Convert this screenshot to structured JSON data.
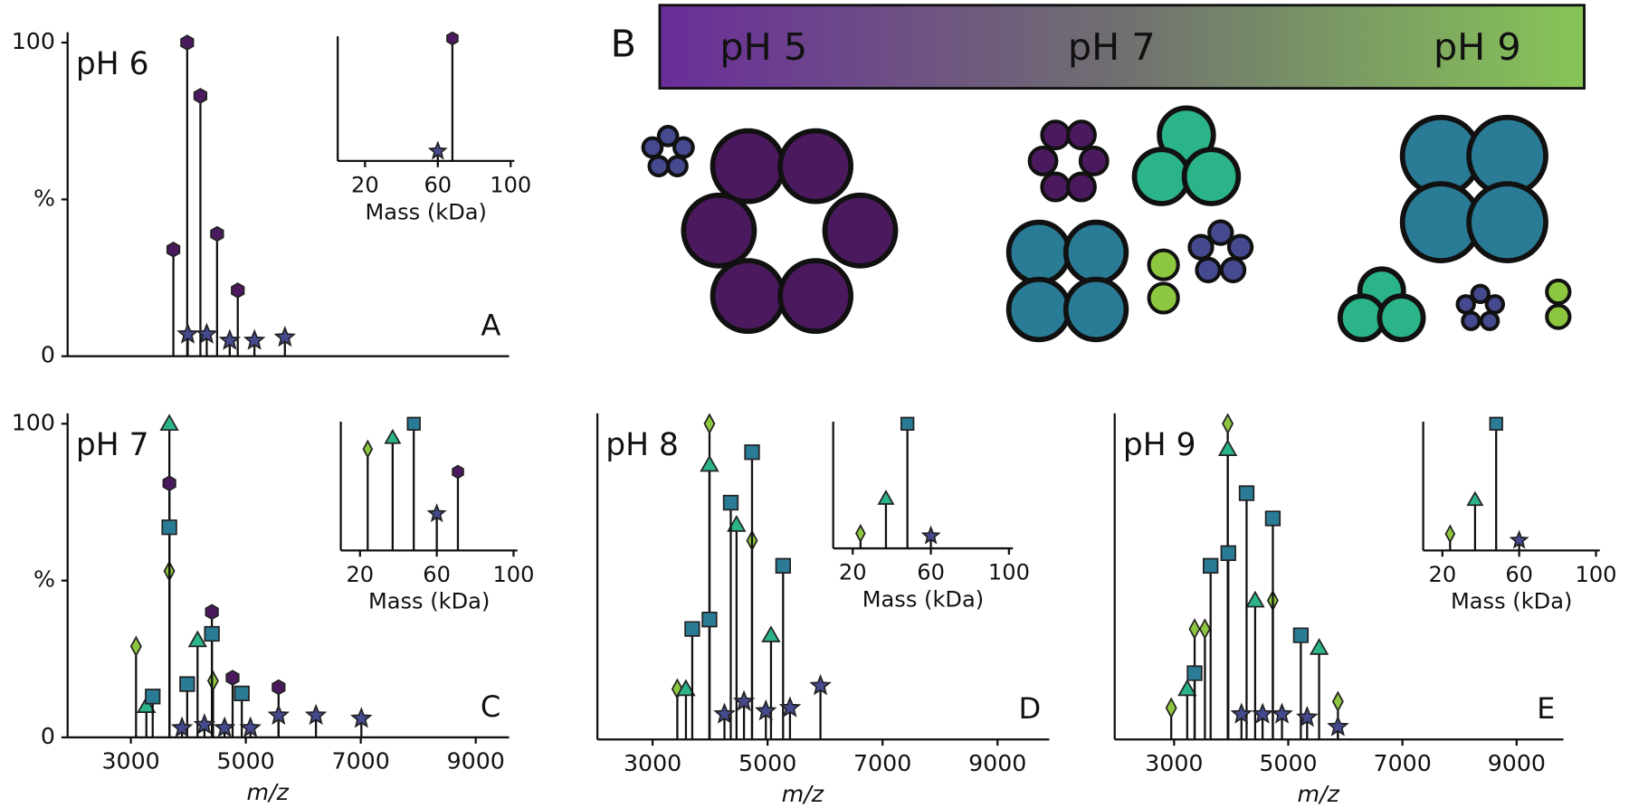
{
  "chart_data": [
    {
      "type": "stem",
      "title": "pH 6",
      "panel": "A",
      "xlim": [
        1900,
        9580
      ],
      "ylim": [
        0,
        100
      ],
      "yticks": [
        0,
        {
          "value": 50,
          "label": "%"
        },
        100
      ],
      "series": [
        {
          "marker": "hexagon",
          "color": "#4b1a5e",
          "x": [
            3740,
            3980,
            4210,
            4500,
            4860
          ],
          "values": [
            34,
            100,
            83,
            39,
            21
          ]
        },
        {
          "marker": "star",
          "color": "#454a8f",
          "x": [
            3990,
            4320,
            4720,
            5150,
            5680
          ],
          "values": [
            7,
            7,
            5,
            5,
            6
          ]
        }
      ],
      "inset": {
        "type": "stem",
        "xlabel": "Mass (kDa)",
        "xlim": [
          5,
          102
        ],
        "ylim": [
          0,
          100
        ],
        "xticks": [
          20,
          60,
          100
        ],
        "series": [
          {
            "marker": "hexagon",
            "color": "#4b1a5e",
            "x": [
              68
            ],
            "values": [
              100
            ]
          },
          {
            "marker": "star",
            "color": "#454a8f",
            "x": [
              60
            ],
            "values": [
              8
            ]
          }
        ]
      }
    },
    {
      "type": "stem",
      "title": "pH 7",
      "panel": "C",
      "xlabel": "m/z",
      "xlim": [
        1900,
        9580
      ],
      "ylim": [
        0,
        100
      ],
      "yticks": [
        0,
        {
          "value": 50,
          "label": "%"
        },
        100
      ],
      "xticks": [
        3000,
        5000,
        7000,
        9000
      ],
      "series": [
        {
          "marker": "diamond",
          "color": "#8dc63f",
          "x": [
            3090,
            3670,
            4430
          ],
          "values": [
            29,
            53,
            18
          ]
        },
        {
          "marker": "triangle",
          "color": "#2bb38a",
          "x": [
            3270,
            3670,
            4160
          ],
          "values": [
            10,
            100,
            31
          ]
        },
        {
          "marker": "hexagon",
          "color": "#4b1a5e",
          "x": [
            3670,
            4410,
            4770,
            5570
          ],
          "values": [
            81,
            40,
            19,
            16
          ]
        },
        {
          "marker": "square",
          "color": "#2a7b95",
          "x": [
            3380,
            3670,
            3980,
            4410,
            4930
          ],
          "values": [
            13,
            67,
            17,
            33,
            14
          ]
        },
        {
          "marker": "star",
          "color": "#454a8f",
          "x": [
            3890,
            4280,
            4630,
            5080,
            5570,
            6220,
            7010
          ],
          "values": [
            3,
            4,
            3,
            3,
            7,
            7,
            6
          ]
        }
      ],
      "inset": {
        "type": "stem",
        "xlabel": "Mass (kDa)",
        "xlim": [
          10,
          102
        ],
        "ylim": [
          0,
          100
        ],
        "xticks": [
          20,
          60,
          100
        ],
        "series": [
          {
            "marker": "diamond",
            "color": "#8dc63f",
            "x": [
              24
            ],
            "values": [
              80
            ]
          },
          {
            "marker": "triangle",
            "color": "#2bb38a",
            "x": [
              37
            ],
            "values": [
              89
            ]
          },
          {
            "marker": "square",
            "color": "#2a7b95",
            "x": [
              48
            ],
            "values": [
              100
            ]
          },
          {
            "marker": "star",
            "color": "#454a8f",
            "x": [
              60
            ],
            "values": [
              29
            ]
          },
          {
            "marker": "hexagon",
            "color": "#4b1a5e",
            "x": [
              71
            ],
            "values": [
              62
            ]
          }
        ]
      }
    },
    {
      "type": "stem",
      "title": "pH 8",
      "panel": "D",
      "xlabel": "m/z",
      "xlim": [
        2040,
        9900
      ],
      "ylim": [
        0,
        100
      ],
      "xticks": [
        3000,
        5000,
        7000,
        9000
      ],
      "series": [
        {
          "marker": "diamond",
          "color": "#8dc63f",
          "x": [
            3430,
            3990,
            4730
          ],
          "values": [
            16,
            100,
            63
          ]
        },
        {
          "marker": "triangle",
          "color": "#2bb38a",
          "x": [
            3580,
            3990,
            4460,
            5060
          ],
          "values": [
            16,
            87,
            68,
            33
          ]
        },
        {
          "marker": "square",
          "color": "#2a7b95",
          "x": [
            3690,
            3990,
            4360,
            4730,
            5270
          ],
          "values": [
            35,
            38,
            75,
            91,
            55
          ]
        },
        {
          "marker": "star",
          "color": "#454a8f",
          "x": [
            4250,
            4590,
            4970,
            5390,
            5920
          ],
          "values": [
            8,
            12,
            9,
            10,
            17
          ]
        }
      ],
      "inset": {
        "type": "stem",
        "xlabel": "Mass (kDa)",
        "xlim": [
          10,
          102
        ],
        "ylim": [
          0,
          100
        ],
        "xticks": [
          20,
          60,
          100
        ],
        "series": [
          {
            "marker": "diamond",
            "color": "#8dc63f",
            "x": [
              24
            ],
            "values": [
              12
            ]
          },
          {
            "marker": "triangle",
            "color": "#2bb38a",
            "x": [
              37
            ],
            "values": [
              40
            ]
          },
          {
            "marker": "square",
            "color": "#2a7b95",
            "x": [
              48
            ],
            "values": [
              100
            ]
          },
          {
            "marker": "star",
            "color": "#454a8f",
            "x": [
              60
            ],
            "values": [
              10
            ]
          }
        ]
      }
    },
    {
      "type": "stem",
      "title": "pH 9",
      "panel": "E",
      "xlabel": "m/z",
      "xlim": [
        1960,
        9820
      ],
      "ylim": [
        0,
        100
      ],
      "xticks": [
        3000,
        5000,
        7000,
        9000
      ],
      "series": [
        {
          "marker": "diamond",
          "color": "#8dc63f",
          "x": [
            2950,
            3360,
            3540,
            3940,
            4730,
            5870
          ],
          "values": [
            10,
            35,
            35,
            100,
            44,
            12
          ]
        },
        {
          "marker": "triangle",
          "color": "#2bb38a",
          "x": [
            3230,
            3940,
            4420,
            5540
          ],
          "values": [
            16,
            92,
            44,
            29
          ]
        },
        {
          "marker": "square",
          "color": "#2a7b95",
          "x": [
            3360,
            3640,
            3950,
            4270,
            4730,
            5220
          ],
          "values": [
            21,
            55,
            59,
            78,
            70,
            33
          ]
        },
        {
          "marker": "star",
          "color": "#454a8f",
          "x": [
            4180,
            4550,
            4890,
            5330,
            5870
          ],
          "values": [
            8,
            8,
            8,
            7,
            4
          ]
        }
      ],
      "inset": {
        "type": "stem",
        "xlabel": "Mass (kDa)",
        "xlim": [
          10,
          102
        ],
        "ylim": [
          0,
          100
        ],
        "xticks": [
          20,
          60,
          100
        ],
        "series": [
          {
            "marker": "diamond",
            "color": "#8dc63f",
            "x": [
              24
            ],
            "values": [
              13
            ]
          },
          {
            "marker": "triangle",
            "color": "#2bb38a",
            "x": [
              37
            ],
            "values": [
              40
            ]
          },
          {
            "marker": "square",
            "color": "#2a7b95",
            "x": [
              48
            ],
            "values": [
              100
            ]
          },
          {
            "marker": "star",
            "color": "#454a8f",
            "x": [
              60
            ],
            "values": [
              8
            ]
          }
        ]
      }
    }
  ],
  "diagram": {
    "panel": "B",
    "gradient_labels": [
      "pH 5",
      "pH 7",
      "pH 9"
    ]
  }
}
